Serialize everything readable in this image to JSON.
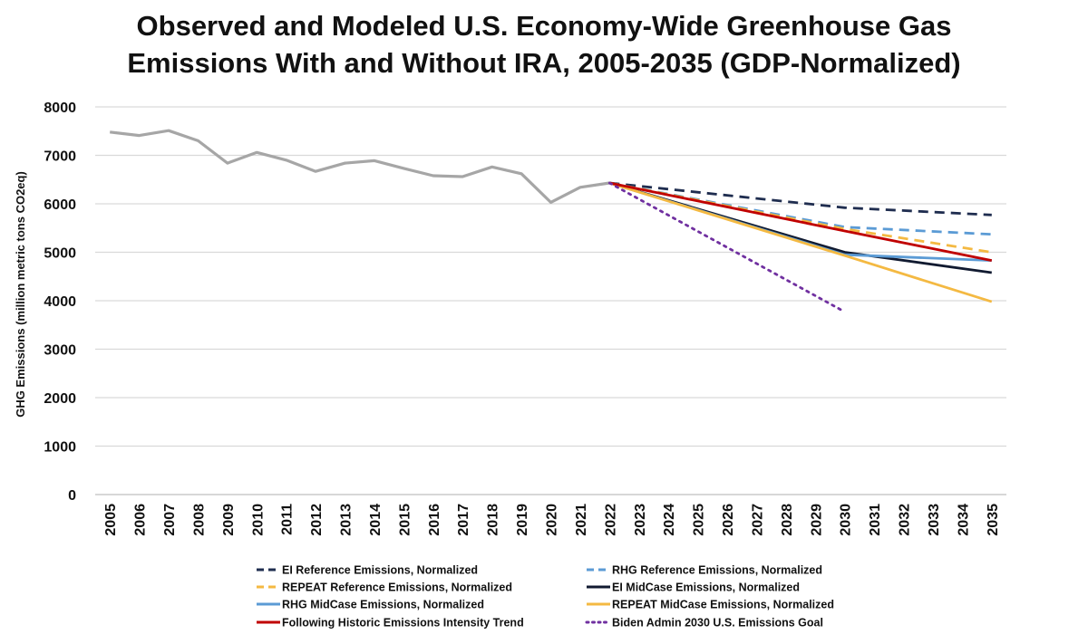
{
  "chart_data": {
    "type": "line",
    "title_lines": [
      "Observed and Modeled U.S. Economy-Wide Greenhouse Gas",
      "Emissions With and Without IRA, 2005-2035 (GDP-Normalized)"
    ],
    "xlabel": "",
    "ylabel": "GHG Emissions (million metric tons CO2eq)",
    "ylim": [
      0,
      8000
    ],
    "yticks": [
      0,
      1000,
      2000,
      3000,
      4000,
      5000,
      6000,
      7000,
      8000
    ],
    "categories": [
      "2005",
      "2006",
      "2007",
      "2008",
      "2009",
      "2010",
      "2011",
      "2012",
      "2013",
      "2014",
      "2015",
      "2016",
      "2017",
      "2018",
      "2019",
      "2020",
      "2021",
      "2022",
      "2023",
      "2024",
      "2025",
      "2026",
      "2027",
      "2028",
      "2029",
      "2030",
      "2031",
      "2032",
      "2033",
      "2034",
      "2035"
    ],
    "grid": true,
    "series": [
      {
        "name": "Historical Emissions",
        "color": "#a6a6a6",
        "dash": "solid",
        "in_legend": false,
        "x": [
          2005,
          2006,
          2007,
          2008,
          2009,
          2010,
          2011,
          2012,
          2013,
          2014,
          2015,
          2016,
          2017,
          2018,
          2019,
          2020,
          2021,
          2022
        ],
        "values": [
          7480,
          7410,
          7510,
          7300,
          6840,
          7060,
          6900,
          6670,
          6840,
          6890,
          6730,
          6580,
          6560,
          6760,
          6620,
          6030,
          6340,
          6430
        ]
      },
      {
        "name": "EI Reference Emissions, Normalized",
        "color": "#1f2d4f",
        "dash": "dash",
        "in_legend": true,
        "x": [
          2022,
          2030,
          2035
        ],
        "values": [
          6430,
          5920,
          5770
        ]
      },
      {
        "name": "RHG Reference Emissions, Normalized",
        "color": "#5b9bd5",
        "dash": "dash",
        "in_legend": true,
        "x": [
          2022,
          2030,
          2035
        ],
        "values": [
          6430,
          5520,
          5370
        ]
      },
      {
        "name": "REPEAT Reference Emissions, Normalized",
        "color": "#f4b942",
        "dash": "dash",
        "in_legend": true,
        "x": [
          2022,
          2030,
          2035
        ],
        "values": [
          6430,
          5480,
          5000
        ]
      },
      {
        "name": "EI MidCase Emissions, Normalized",
        "color": "#111a30",
        "dash": "solid",
        "in_legend": true,
        "x": [
          2022,
          2030,
          2035
        ],
        "values": [
          6430,
          5000,
          4580
        ]
      },
      {
        "name": "RHG MidCase Emissions, Normalized",
        "color": "#5b9bd5",
        "dash": "solid",
        "in_legend": true,
        "x": [
          2022,
          2030,
          2035
        ],
        "values": [
          6430,
          4950,
          4830
        ]
      },
      {
        "name": "REPEAT MidCase Emissions, Normalized",
        "color": "#f4b942",
        "dash": "solid",
        "in_legend": true,
        "x": [
          2022,
          2030,
          2035
        ],
        "values": [
          6430,
          4930,
          3980
        ]
      },
      {
        "name": "Following Historic Emissions Intensity Trend",
        "color": "#c00000",
        "dash": "solid",
        "in_legend": true,
        "x": [
          2022,
          2030,
          2035
        ],
        "values": [
          6430,
          5440,
          4830
        ]
      },
      {
        "name": "Biden Admin 2030 U.S. Emissions Goal",
        "color": "#7030a0",
        "dash": "dot",
        "in_legend": true,
        "x": [
          2022,
          2030
        ],
        "values": [
          6430,
          3770
        ]
      }
    ],
    "legend_order": [
      1,
      2,
      3,
      4,
      5,
      6,
      7,
      8
    ],
    "legend_position": "bottom"
  }
}
